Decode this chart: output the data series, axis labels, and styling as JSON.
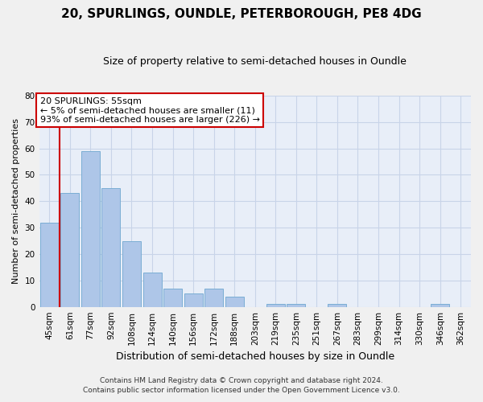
{
  "title": "20, SPURLINGS, OUNDLE, PETERBOROUGH, PE8 4DG",
  "subtitle": "Size of property relative to semi-detached houses in Oundle",
  "xlabel": "Distribution of semi-detached houses by size in Oundle",
  "ylabel": "Number of semi-detached properties",
  "categories": [
    "45sqm",
    "61sqm",
    "77sqm",
    "92sqm",
    "108sqm",
    "124sqm",
    "140sqm",
    "156sqm",
    "172sqm",
    "188sqm",
    "203sqm",
    "219sqm",
    "235sqm",
    "251sqm",
    "267sqm",
    "283sqm",
    "299sqm",
    "314sqm",
    "330sqm",
    "346sqm",
    "362sqm"
  ],
  "values": [
    32,
    43,
    59,
    45,
    25,
    13,
    7,
    5,
    7,
    4,
    0,
    1,
    1,
    0,
    1,
    0,
    0,
    0,
    0,
    1,
    0
  ],
  "bar_color": "#aec6e8",
  "bar_edge_color": "#7aadd4",
  "vertical_line_color": "#cc0000",
  "annotation_text": "20 SPURLINGS: 55sqm\n← 5% of semi-detached houses are smaller (11)\n93% of semi-detached houses are larger (226) →",
  "annotation_box_facecolor": "#ffffff",
  "annotation_box_edgecolor": "#cc0000",
  "ylim": [
    0,
    80
  ],
  "yticks": [
    0,
    10,
    20,
    30,
    40,
    50,
    60,
    70,
    80
  ],
  "grid_color": "#c8d4e8",
  "plot_bg_color": "#e8eef8",
  "fig_bg_color": "#f0f0f0",
  "footer_line1": "Contains HM Land Registry data © Crown copyright and database right 2024.",
  "footer_line2": "Contains public sector information licensed under the Open Government Licence v3.0.",
  "title_fontsize": 11,
  "subtitle_fontsize": 9,
  "ylabel_fontsize": 8,
  "xlabel_fontsize": 9,
  "tick_fontsize": 7.5,
  "annotation_fontsize": 8,
  "footer_fontsize": 6.5
}
